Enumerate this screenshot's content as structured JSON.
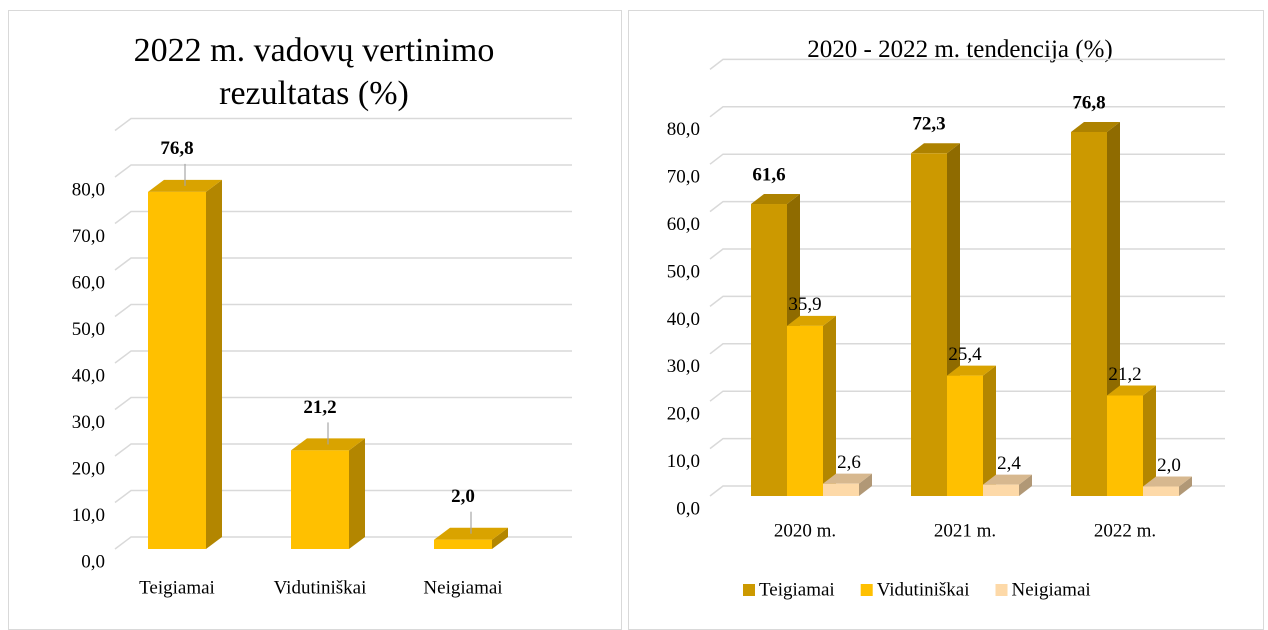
{
  "chart_data": [
    {
      "type": "bar3d",
      "title": "2022 m. vadovų vertinimo rezultatas (%)",
      "categories": [
        "Teigiamai",
        "Vidutiniškai",
        "Neigiamai"
      ],
      "values": [
        76.8,
        21.2,
        2.0
      ],
      "value_labels": [
        "76,8",
        "21,2",
        "2,0"
      ],
      "color": "#ffc000",
      "ylim": [
        0,
        90
      ],
      "yticks": [
        {
          "value": 0,
          "label": "0,0"
        },
        {
          "value": 10,
          "label": "10,0"
        },
        {
          "value": 20,
          "label": "20,0"
        },
        {
          "value": 30,
          "label": "30,0"
        },
        {
          "value": 40,
          "label": "40,0"
        },
        {
          "value": 50,
          "label": "50,0"
        },
        {
          "value": 60,
          "label": "60,0"
        },
        {
          "value": 70,
          "label": "70,0"
        },
        {
          "value": 80,
          "label": "80,0"
        }
      ],
      "grid": true
    },
    {
      "type": "grouped_bar3d",
      "title": "2020 - 2022 m. tendencija (%)",
      "categories": [
        "2020 m.",
        "2021 m.",
        "2022 m."
      ],
      "series": [
        {
          "name": "Teigiamai",
          "color": "#cc9900",
          "values": [
            61.6,
            72.3,
            76.8
          ],
          "value_labels": [
            "61,6",
            "72,3",
            "76,8"
          ]
        },
        {
          "name": "Vidutiniškai",
          "color": "#ffc000",
          "values": [
            35.9,
            25.4,
            21.2
          ],
          "value_labels": [
            "35,9",
            "25,4",
            "21,2"
          ]
        },
        {
          "name": "Neigiamai",
          "color": "#fdd9a8",
          "values": [
            2.6,
            2.4,
            2.0
          ],
          "value_labels": [
            "2,6",
            "2,4",
            "2,0"
          ]
        }
      ],
      "ylim": [
        0,
        90
      ],
      "yticks": [
        {
          "value": 0,
          "label": "0,0"
        },
        {
          "value": 10,
          "label": "10,0"
        },
        {
          "value": 20,
          "label": "20,0"
        },
        {
          "value": 30,
          "label": "30,0"
        },
        {
          "value": 40,
          "label": "40,0"
        },
        {
          "value": 50,
          "label": "50,0"
        },
        {
          "value": 60,
          "label": "60,0"
        },
        {
          "value": 70,
          "label": "70,0"
        },
        {
          "value": 80,
          "label": "80,0"
        }
      ],
      "grid": true,
      "legend": "bottom"
    }
  ]
}
